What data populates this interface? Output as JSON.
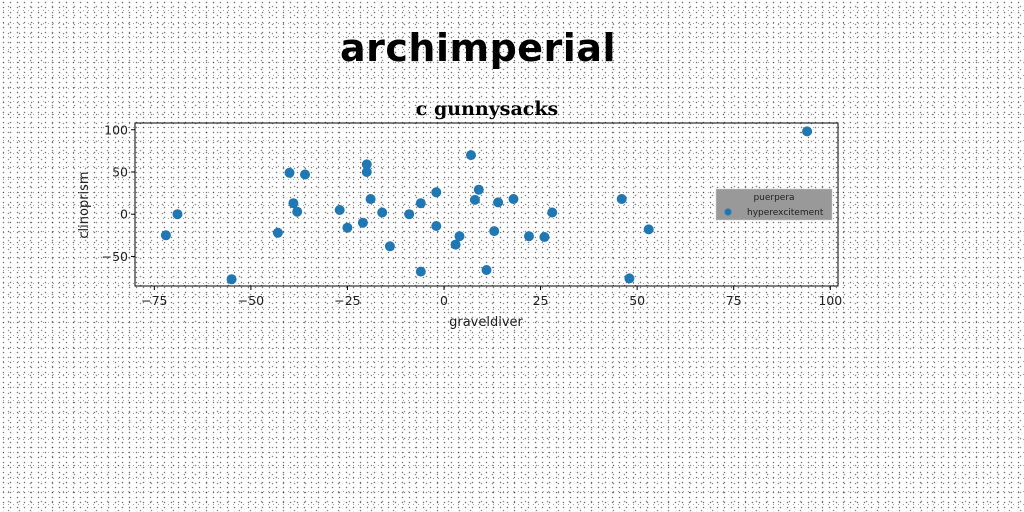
{
  "header": {
    "title": "archimperial"
  },
  "chart_data": {
    "type": "scatter",
    "title": "c gunnysacks",
    "xlabel": "graveldiver",
    "ylabel": "clinoprism",
    "xlim": [
      -80,
      102
    ],
    "ylim": [
      -85,
      108
    ],
    "xticks": [
      -75,
      -50,
      -25,
      0,
      25,
      50,
      75,
      100
    ],
    "xtick_labels": [
      "−75",
      "−50",
      "−25",
      "0",
      "25",
      "50",
      "75",
      "100"
    ],
    "yticks": [
      -50,
      0,
      50,
      100
    ],
    "ytick_labels": [
      "−50",
      "0",
      "50",
      "100"
    ],
    "grid": false,
    "legend": {
      "title": "puerpera",
      "placement": "right",
      "background": "#999999"
    },
    "series": [
      {
        "name": "hyperexcitement",
        "color": "#1f77b4",
        "x": [
          -72,
          -69,
          -55,
          -43,
          -40,
          -39,
          -38,
          -36,
          -27,
          -25,
          -21,
          -20,
          -20,
          -19,
          -16,
          -14,
          -9,
          -6,
          -6,
          -2,
          -2,
          3,
          4,
          7,
          8,
          9,
          11,
          13,
          14,
          18,
          22,
          26,
          28,
          46,
          48,
          53,
          94
        ],
        "y": [
          -25,
          0,
          -77,
          -22,
          49,
          13,
          3,
          47,
          5,
          -16,
          -10,
          59,
          50,
          18,
          2,
          -38,
          0,
          13,
          -68,
          -14,
          26,
          -36,
          -26,
          70,
          17,
          29,
          -66,
          -20,
          14,
          18,
          -26,
          -27,
          2,
          18,
          -76,
          -18,
          98
        ]
      }
    ]
  }
}
